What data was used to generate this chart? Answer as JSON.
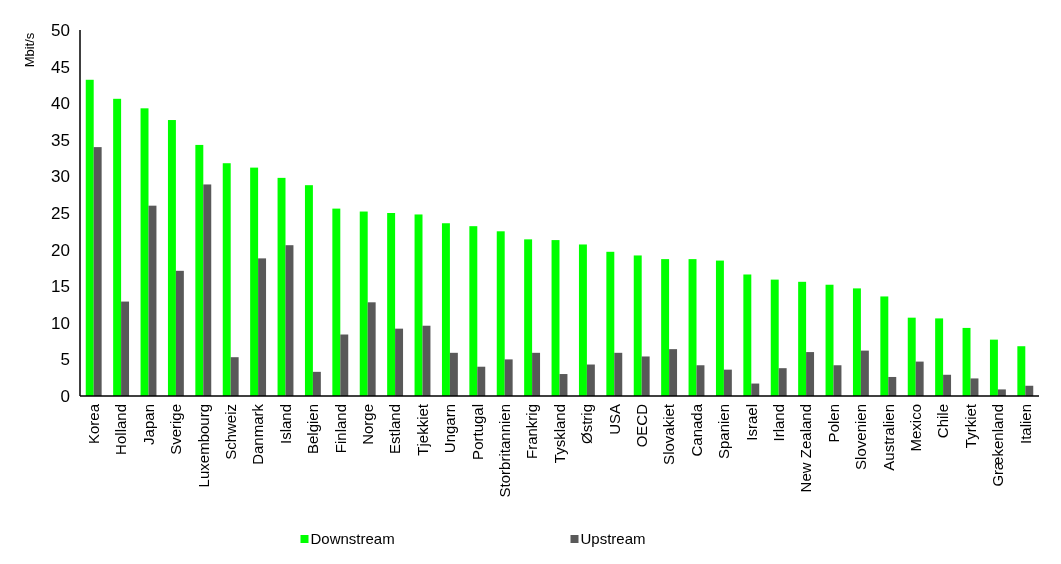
{
  "chart_data": {
    "type": "bar",
    "ylabel": "Mbit/s",
    "categories": [
      "Korea",
      "Holland",
      "Japan",
      "Sverige",
      "Luxembourg",
      "Schweiz",
      "Danmark",
      "Island",
      "Belgien",
      "Finland",
      "Norge",
      "Estland",
      "Tjekkiet",
      "Ungarn",
      "Portugal",
      "Storbritannien",
      "Frankrig",
      "Tyskland",
      "Østrig",
      "USA",
      "OECD",
      "Slovakiet",
      "Canada",
      "Spanien",
      "Israel",
      "Irland",
      "New Zealand",
      "Polen",
      "Slovenien",
      "Australien",
      "Mexico",
      "Chile",
      "Tyrkiet",
      "Grækenland",
      "Italien"
    ],
    "series": [
      {
        "name": "Downstream",
        "color": "#00ff00",
        "values": [
          43.2,
          40.6,
          39.3,
          37.7,
          34.3,
          31.8,
          31.2,
          29.8,
          28.8,
          25.6,
          25.2,
          25.0,
          24.8,
          23.6,
          23.2,
          22.5,
          21.4,
          21.3,
          20.7,
          19.7,
          19.2,
          18.7,
          18.7,
          18.5,
          16.6,
          15.9,
          15.6,
          15.2,
          14.7,
          13.6,
          10.7,
          10.6,
          9.3,
          7.7,
          6.8
        ]
      },
      {
        "name": "Upstream",
        "color": "#595959",
        "values": [
          34.0,
          12.9,
          26.0,
          17.1,
          28.9,
          5.3,
          18.8,
          20.6,
          3.3,
          8.4,
          12.8,
          9.2,
          9.6,
          5.9,
          4.0,
          5.0,
          5.9,
          3.0,
          4.3,
          5.9,
          5.4,
          6.4,
          4.2,
          3.6,
          1.7,
          3.8,
          6.0,
          4.2,
          6.2,
          2.6,
          4.7,
          2.9,
          2.4,
          0.9,
          1.4
        ]
      }
    ],
    "ylim": [
      0,
      50
    ],
    "yticks": [
      0,
      5,
      10,
      15,
      20,
      25,
      30,
      35,
      40,
      45,
      50
    ],
    "grid": false,
    "legend": "bottom"
  }
}
